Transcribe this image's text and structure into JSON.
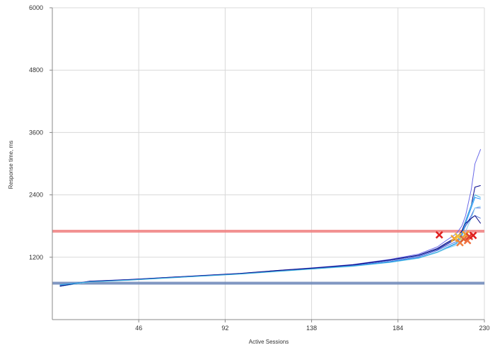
{
  "chart_data": {
    "type": "line",
    "xlabel": "Active Sessions",
    "ylabel": "Response time, ms",
    "xlim": [
      0,
      230
    ],
    "ylim": [
      0,
      6000
    ],
    "x_ticks": [
      46,
      92,
      138,
      184,
      230
    ],
    "y_ticks": [
      1200,
      2400,
      3600,
      4800,
      6000
    ],
    "grid": true,
    "reference_lines": [
      {
        "y": 1700,
        "color": "#f08080"
      },
      {
        "y": 700,
        "color": "#6a86b8"
      }
    ],
    "series": [
      {
        "color": "#00008b",
        "x": [
          4,
          20,
          40,
          60,
          80,
          100,
          120,
          140,
          160,
          180,
          195,
          205,
          210,
          215,
          218,
          220,
          223,
          225,
          228
        ],
        "y": [
          640,
          730,
          760,
          800,
          840,
          880,
          930,
          990,
          1050,
          1140,
          1230,
          1350,
          1450,
          1550,
          1700,
          1900,
          2200,
          2550,
          2580
        ]
      },
      {
        "color": "#4169e1",
        "x": [
          4,
          20,
          40,
          60,
          80,
          100,
          120,
          140,
          160,
          180,
          195,
          205,
          210,
          215,
          218,
          220,
          223,
          225,
          228
        ],
        "y": [
          660,
          735,
          765,
          805,
          845,
          885,
          935,
          985,
          1040,
          1120,
          1210,
          1330,
          1420,
          1500,
          1650,
          1800,
          2000,
          2150,
          2150
        ]
      },
      {
        "color": "#6a6ae8",
        "x": [
          4,
          20,
          40,
          60,
          80,
          100,
          120,
          140,
          160,
          180,
          195,
          205,
          210,
          215,
          218,
          220,
          223,
          225,
          228
        ],
        "y": [
          650,
          740,
          770,
          810,
          850,
          890,
          945,
          1000,
          1060,
          1160,
          1260,
          1400,
          1530,
          1650,
          1800,
          2000,
          2500,
          3000,
          3280
        ]
      },
      {
        "color": "#1e90ff",
        "x": [
          4,
          20,
          40,
          60,
          80,
          100,
          120,
          140,
          160,
          180,
          195,
          205,
          210,
          215,
          218,
          220,
          223,
          225,
          228
        ],
        "y": [
          670,
          730,
          760,
          800,
          840,
          880,
          930,
          980,
          1030,
          1110,
          1190,
          1300,
          1380,
          1460,
          1600,
          1850,
          2150,
          2350,
          2320
        ]
      },
      {
        "color": "#87ceeb",
        "x": [
          4,
          20,
          40,
          60,
          80,
          100,
          120,
          140,
          160,
          180,
          195,
          205,
          210,
          215,
          218,
          220,
          223,
          225,
          228
        ],
        "y": [
          640,
          725,
          755,
          795,
          835,
          875,
          925,
          975,
          1025,
          1100,
          1180,
          1290,
          1370,
          1430,
          1550,
          1700,
          1950,
          2150,
          2180
        ]
      },
      {
        "color": "#5f7fd0",
        "x": [
          4,
          20,
          40,
          60,
          80,
          100,
          120,
          140,
          160,
          180,
          195,
          205,
          210,
          215,
          218,
          220,
          223,
          225,
          228
        ],
        "y": [
          655,
          735,
          765,
          805,
          845,
          885,
          935,
          990,
          1050,
          1140,
          1230,
          1360,
          1470,
          1560,
          1680,
          1800,
          1950,
          2000,
          1950
        ]
      },
      {
        "color": "#000080",
        "x": [
          4,
          20,
          40,
          60,
          80,
          100,
          120,
          140,
          160,
          180,
          195,
          205,
          210,
          215,
          218,
          220,
          223,
          225,
          228
        ],
        "y": [
          645,
          738,
          768,
          808,
          848,
          888,
          945,
          995,
          1055,
          1150,
          1240,
          1370,
          1480,
          1580,
          1700,
          1850,
          1950,
          2000,
          1850
        ]
      },
      {
        "color": "#3ab0e0",
        "x": [
          4,
          20,
          40,
          60,
          80,
          100,
          120,
          140,
          160,
          180,
          195,
          205,
          210,
          215,
          218,
          220,
          223,
          225,
          228
        ],
        "y": [
          665,
          728,
          758,
          798,
          838,
          878,
          928,
          978,
          1030,
          1105,
          1185,
          1300,
          1390,
          1470,
          1620,
          1900,
          2200,
          2400,
          2350
        ]
      }
    ],
    "markers": [
      {
        "x": 206,
        "y": 1630,
        "color": "#e02020"
      },
      {
        "x": 214,
        "y": 1560,
        "color": "#f0a030"
      },
      {
        "x": 216,
        "y": 1600,
        "color": "#f0c040"
      },
      {
        "x": 217,
        "y": 1480,
        "color": "#f08040"
      },
      {
        "x": 219,
        "y": 1550,
        "color": "#e06030"
      },
      {
        "x": 220,
        "y": 1640,
        "color": "#f0a030"
      },
      {
        "x": 221,
        "y": 1520,
        "color": "#f07040"
      },
      {
        "x": 222,
        "y": 1600,
        "color": "#e04030"
      },
      {
        "x": 224,
        "y": 1620,
        "color": "#e02020"
      }
    ]
  }
}
